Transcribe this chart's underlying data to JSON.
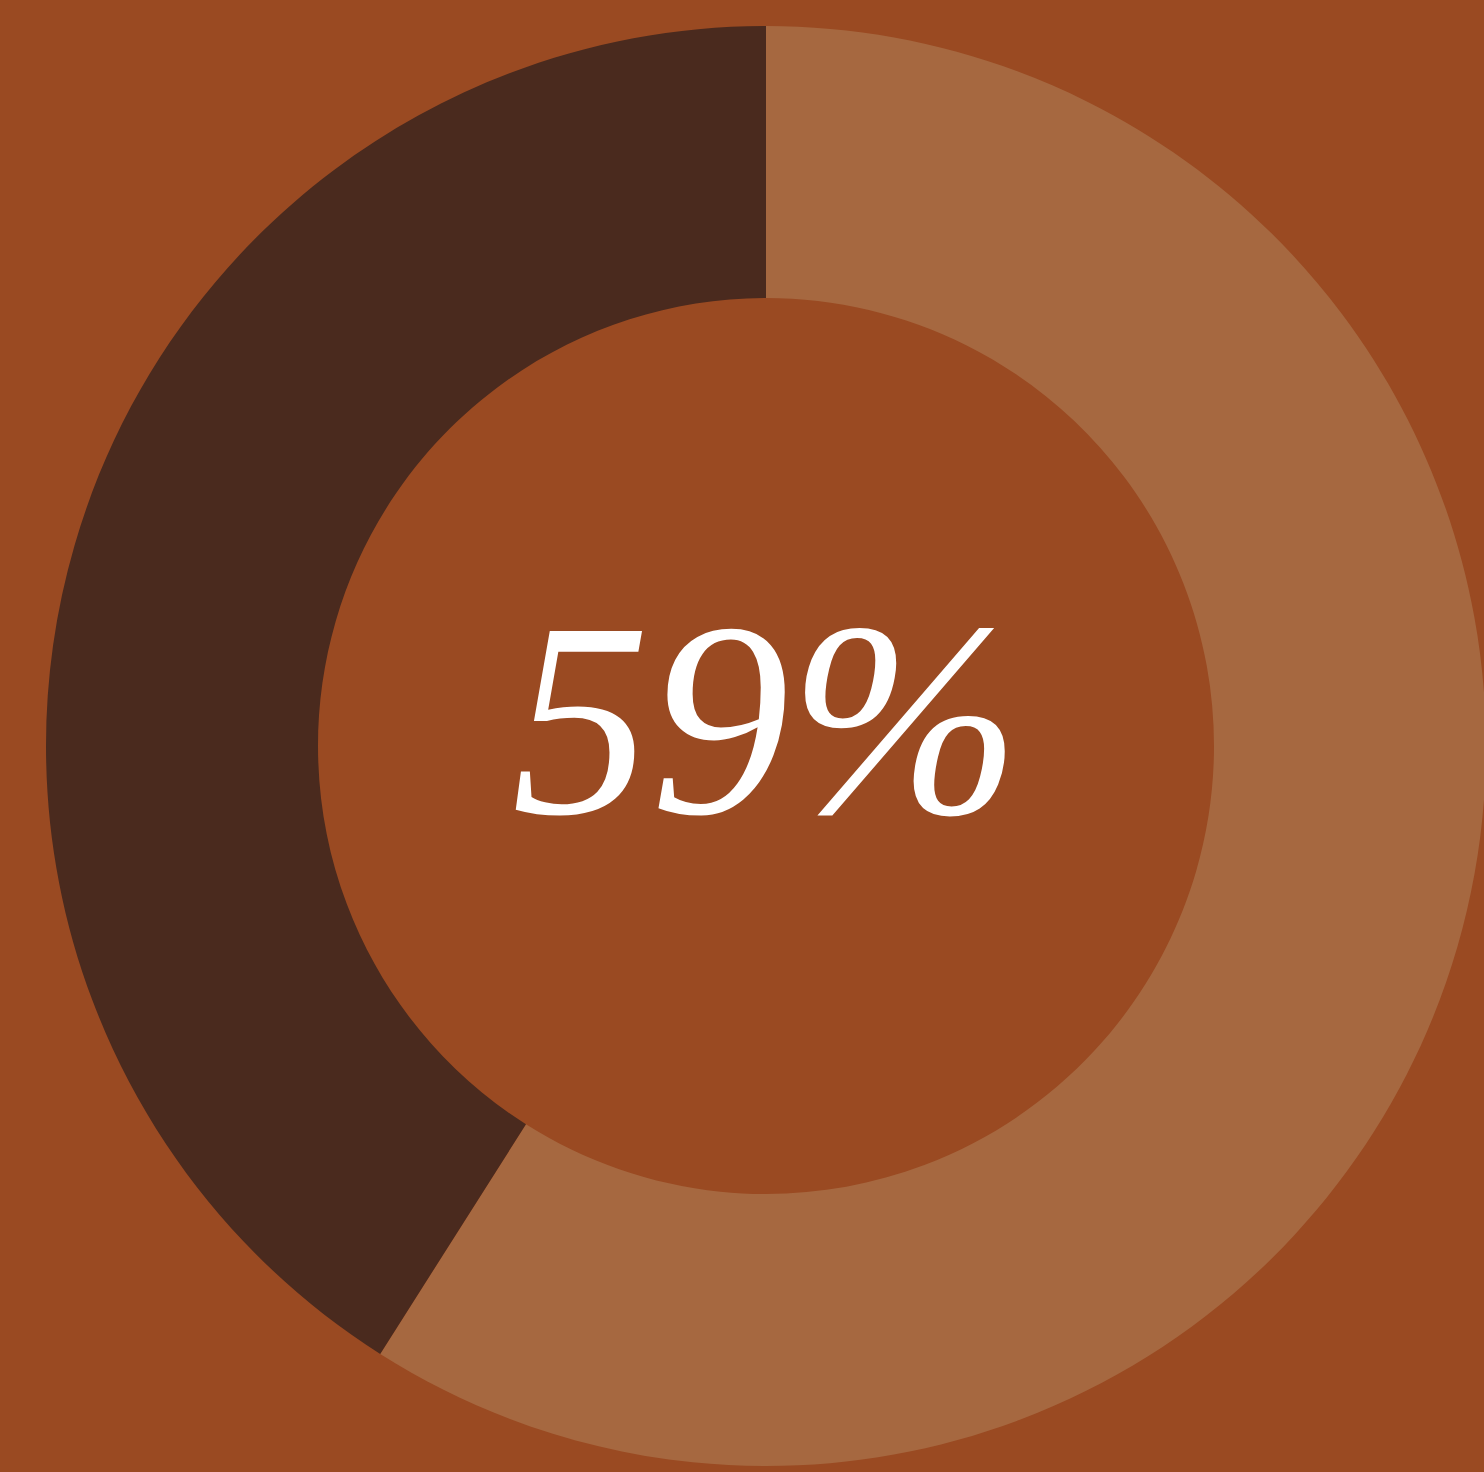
{
  "chart_data": {
    "type": "donut",
    "categories": [
      null,
      null
    ],
    "values": [
      59,
      41
    ],
    "colors": [
      "#a66840",
      "#4a2a1e"
    ],
    "value_labels": [
      "59%",
      null
    ]
  }
}
